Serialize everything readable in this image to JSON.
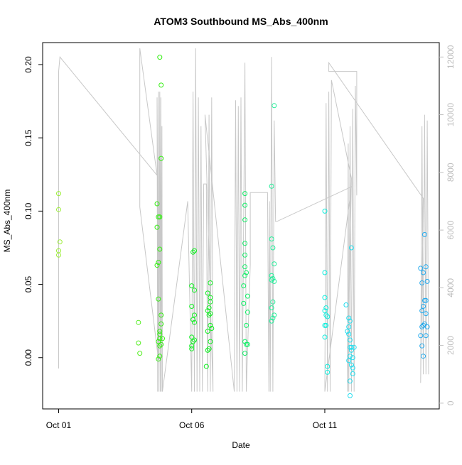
{
  "chart_data": {
    "type": "scatter",
    "title": "ATOM3 Southbound MS_Abs_400nm",
    "xlabel": "Date",
    "ylabel": "MS_Abs_400nm",
    "x_ticks": [
      {
        "label": "Oct 01",
        "value": 0
      },
      {
        "label": "Oct 06",
        "value": 5
      },
      {
        "label": "Oct 11",
        "value": 10
      }
    ],
    "xlim": [
      -0.6,
      14.3
    ],
    "ylim": [
      -0.035,
      0.215
    ],
    "y_ticks": [
      0.0,
      0.05,
      0.1,
      0.15,
      0.2
    ],
    "y_tick_labels": [
      "0.00",
      "0.05",
      "0.10",
      "0.15",
      "0.20"
    ],
    "y2_ticks": [
      0,
      2000,
      4000,
      6000,
      8000,
      10000,
      12000
    ],
    "y2_tick_labels": [
      "0",
      "2000",
      "4000",
      "6000",
      "8000",
      "10000",
      "12000"
    ],
    "y2lim": [
      -200,
      12500
    ],
    "grid": false,
    "colors": {
      "altitude_line": "#c8c8c8",
      "axis": "#000000",
      "right_axis": "#bebebe"
    },
    "series": [
      {
        "color": "#99ee33",
        "points": [
          [
            0.0,
            0.112
          ],
          [
            0.0,
            0.101
          ],
          [
            0.05,
            0.079
          ],
          [
            0.0,
            0.073
          ],
          [
            0.0,
            0.07
          ]
        ]
      },
      {
        "color": "#55ee22",
        "points": [
          [
            3.0,
            0.024
          ],
          [
            3.0,
            0.01
          ],
          [
            3.05,
            0.003
          ]
        ]
      },
      {
        "color": "#33ee11",
        "points": [
          [
            3.8,
            0.205
          ],
          [
            3.85,
            0.186
          ],
          [
            3.85,
            0.136
          ],
          [
            3.7,
            0.105
          ],
          [
            3.8,
            0.096
          ],
          [
            3.75,
            0.096
          ],
          [
            3.7,
            0.089
          ],
          [
            3.8,
            0.074
          ],
          [
            3.75,
            0.065
          ],
          [
            3.7,
            0.063
          ],
          [
            3.75,
            0.04
          ],
          [
            3.85,
            0.029
          ],
          [
            3.85,
            0.023
          ],
          [
            3.8,
            0.018
          ],
          [
            3.8,
            0.016
          ],
          [
            3.9,
            0.013
          ],
          [
            3.8,
            0.013
          ],
          [
            3.75,
            0.011
          ],
          [
            3.85,
            0.009
          ],
          [
            3.8,
            0.008
          ],
          [
            3.8,
            0.001
          ],
          [
            3.75,
            -0.001
          ]
        ]
      },
      {
        "color": "#11ee22",
        "points": [
          [
            5.1,
            0.073
          ],
          [
            5.05,
            0.072
          ],
          [
            5.0,
            0.049
          ],
          [
            5.1,
            0.046
          ],
          [
            5.0,
            0.035
          ],
          [
            5.1,
            0.029
          ],
          [
            5.05,
            0.026
          ],
          [
            5.1,
            0.024
          ],
          [
            5.0,
            0.014
          ],
          [
            5.1,
            0.012
          ],
          [
            5.05,
            0.011
          ],
          [
            5.0,
            0.008
          ],
          [
            5.0,
            0.006
          ],
          [
            5.7,
            0.051
          ],
          [
            5.6,
            0.044
          ],
          [
            5.7,
            0.041
          ],
          [
            5.7,
            0.038
          ],
          [
            5.65,
            0.034
          ],
          [
            5.6,
            0.032
          ],
          [
            5.7,
            0.03
          ],
          [
            5.65,
            0.029
          ],
          [
            5.7,
            0.022
          ],
          [
            5.75,
            0.02
          ],
          [
            5.6,
            0.018
          ],
          [
            5.7,
            0.011
          ],
          [
            5.65,
            0.006
          ],
          [
            5.6,
            0.005
          ],
          [
            5.55,
            -0.006
          ]
        ]
      },
      {
        "color": "#11ee66",
        "points": [
          [
            7.0,
            0.112
          ],
          [
            7.0,
            0.104
          ],
          [
            7.0,
            0.094
          ],
          [
            7.0,
            0.078
          ],
          [
            7.0,
            0.07
          ],
          [
            7.0,
            0.062
          ],
          [
            7.05,
            0.058
          ],
          [
            7.0,
            0.056
          ],
          [
            6.95,
            0.049
          ],
          [
            7.1,
            0.042
          ],
          [
            6.95,
            0.037
          ],
          [
            7.1,
            0.031
          ],
          [
            7.05,
            0.022
          ],
          [
            7.0,
            0.011
          ],
          [
            7.05,
            0.009
          ],
          [
            7.1,
            0.009
          ],
          [
            7.0,
            0.003
          ]
        ]
      },
      {
        "color": "#22ee99",
        "points": [
          [
            8.1,
            0.172
          ],
          [
            8.0,
            0.117
          ],
          [
            8.0,
            0.081
          ],
          [
            8.05,
            0.075
          ],
          [
            8.1,
            0.064
          ],
          [
            8.0,
            0.056
          ],
          [
            8.05,
            0.054
          ],
          [
            8.0,
            0.053
          ],
          [
            8.1,
            0.052
          ],
          [
            8.05,
            0.038
          ],
          [
            8.0,
            0.034
          ],
          [
            8.1,
            0.029
          ],
          [
            8.05,
            0.027
          ],
          [
            8.0,
            0.025
          ]
        ]
      },
      {
        "color": "#11eedd",
        "points": [
          [
            10.0,
            0.1
          ],
          [
            10.0,
            0.058
          ],
          [
            10.0,
            0.041
          ],
          [
            10.05,
            0.034
          ],
          [
            10.0,
            0.032
          ],
          [
            10.05,
            0.029
          ],
          [
            10.1,
            0.028
          ],
          [
            10.0,
            0.022
          ],
          [
            10.05,
            0.022
          ],
          [
            10.0,
            0.014
          ],
          [
            10.1,
            -0.006
          ],
          [
            10.1,
            -0.01
          ]
        ]
      },
      {
        "color": "#22ddee",
        "points": [
          [
            11.0,
            0.075
          ],
          [
            10.8,
            0.036
          ],
          [
            10.9,
            0.027
          ],
          [
            10.95,
            0.025
          ],
          [
            10.9,
            0.021
          ],
          [
            10.85,
            0.018
          ],
          [
            10.9,
            0.016
          ],
          [
            10.95,
            0.012
          ],
          [
            10.95,
            0.007
          ],
          [
            11.0,
            0.007
          ],
          [
            11.1,
            0.007
          ],
          [
            11.0,
            0.005
          ],
          [
            10.95,
            0.001
          ],
          [
            11.05,
            0.0
          ],
          [
            10.9,
            -0.002
          ],
          [
            11.0,
            -0.005
          ],
          [
            11.05,
            -0.007
          ],
          [
            11.05,
            -0.011
          ],
          [
            10.95,
            -0.016
          ],
          [
            10.95,
            -0.026
          ]
        ]
      },
      {
        "color": "#22aaee",
        "points": [
          [
            13.75,
            0.084
          ],
          [
            13.6,
            0.061
          ],
          [
            13.8,
            0.062
          ],
          [
            13.7,
            0.058
          ],
          [
            13.85,
            0.052
          ],
          [
            13.65,
            0.051
          ],
          [
            13.75,
            0.039
          ],
          [
            13.8,
            0.039
          ],
          [
            13.7,
            0.035
          ],
          [
            13.65,
            0.032
          ],
          [
            13.8,
            0.03
          ],
          [
            13.75,
            0.023
          ],
          [
            13.7,
            0.022
          ],
          [
            13.65,
            0.021
          ],
          [
            13.85,
            0.021
          ],
          [
            13.6,
            0.015
          ],
          [
            13.8,
            0.015
          ],
          [
            13.65,
            0.008
          ],
          [
            13.7,
            0.001
          ]
        ]
      }
    ],
    "altitude_line": {
      "axis": "right",
      "points": [
        [
          0.0,
          1200
        ],
        [
          0.0,
          11500
        ],
        [
          0.05,
          12000
        ],
        [
          3.7,
          7900
        ],
        [
          3.05,
          12300
        ],
        [
          3.05,
          6800
        ],
        [
          3.75,
          1500
        ],
        [
          3.7,
          10600
        ],
        [
          3.72,
          400
        ],
        [
          3.75,
          10800
        ],
        [
          3.77,
          400
        ],
        [
          3.8,
          10800
        ],
        [
          3.82,
          400
        ],
        [
          3.84,
          10600
        ],
        [
          3.86,
          400
        ],
        [
          3.88,
          9600
        ],
        [
          3.9,
          400
        ],
        [
          4.85,
          7000
        ],
        [
          5.0,
          400
        ],
        [
          5.05,
          10800
        ],
        [
          5.1,
          400
        ],
        [
          5.15,
          12300
        ],
        [
          5.2,
          400
        ],
        [
          5.25,
          10600
        ],
        [
          5.3,
          400
        ],
        [
          5.35,
          9600
        ],
        [
          5.4,
          400
        ],
        [
          5.45,
          7600
        ],
        [
          5.55,
          7600
        ],
        [
          5.6,
          400
        ],
        [
          5.65,
          10000
        ],
        [
          5.7,
          400
        ],
        [
          5.75,
          10600
        ],
        [
          5.8,
          400
        ],
        [
          5.5,
          10000
        ],
        [
          6.6,
          400
        ],
        [
          6.65,
          10500
        ],
        [
          6.7,
          400
        ],
        [
          6.75,
          10300
        ],
        [
          6.8,
          400
        ],
        [
          6.85,
          10600
        ],
        [
          6.9,
          400
        ],
        [
          7.0,
          11800
        ],
        [
          7.05,
          400
        ],
        [
          7.2,
          4800
        ],
        [
          7.2,
          7300
        ],
        [
          7.85,
          7300
        ],
        [
          7.9,
          400
        ],
        [
          7.92,
          7000
        ],
        [
          7.95,
          400
        ],
        [
          8.0,
          12000
        ],
        [
          8.05,
          400
        ],
        [
          8.1,
          9800
        ],
        [
          8.15,
          6300
        ],
        [
          8.2,
          6300
        ],
        [
          11.0,
          7500
        ],
        [
          10.0,
          400
        ],
        [
          10.05,
          10400
        ],
        [
          10.1,
          400
        ],
        [
          10.15,
          10800
        ],
        [
          10.2,
          400
        ],
        [
          10.25,
          11200
        ],
        [
          11.0,
          7800
        ],
        [
          10.85,
          400
        ],
        [
          10.88,
          9000
        ],
        [
          10.9,
          400
        ],
        [
          10.95,
          9600
        ],
        [
          11.0,
          400
        ],
        [
          11.05,
          10200
        ],
        [
          11.1,
          400
        ],
        [
          11.15,
          11000
        ],
        [
          11.2,
          7200
        ],
        [
          11.2,
          11500
        ],
        [
          10.15,
          11500
        ],
        [
          10.15,
          11800
        ],
        [
          13.7,
          7100
        ],
        [
          13.6,
          700
        ],
        [
          13.65,
          9600
        ],
        [
          13.7,
          1000
        ],
        [
          13.75,
          10000
        ],
        [
          13.8,
          1000
        ],
        [
          13.85,
          9800
        ],
        [
          13.9,
          1000
        ]
      ]
    }
  }
}
